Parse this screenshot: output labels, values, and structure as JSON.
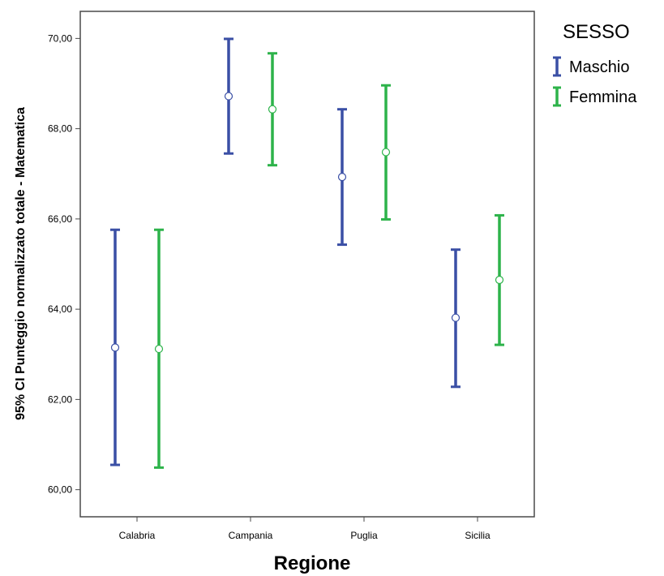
{
  "chart_data": {
    "type": "errorbar",
    "title": "",
    "xlabel": "Regione",
    "ylabel": "95% CI Punteggio normalizzato totale - Matematica",
    "categories": [
      "Calabria",
      "Campania",
      "Puglia",
      "Sicilia"
    ],
    "ylim": [
      59.4,
      70.6
    ],
    "yticks": [
      "60,00",
      "62,00",
      "64,00",
      "66,00",
      "68,00",
      "70,00"
    ],
    "ytick_values": [
      60,
      62,
      64,
      66,
      68,
      70
    ],
    "grid": false,
    "legend": {
      "title": "SESSO",
      "placement": "right"
    },
    "series": [
      {
        "name": "Maschio",
        "color": "#3a4fa5",
        "mean": [
          63.15,
          68.72,
          66.93,
          63.81
        ],
        "lower": [
          60.55,
          67.45,
          65.43,
          62.28
        ],
        "upper": [
          65.76,
          69.99,
          68.43,
          65.32
        ]
      },
      {
        "name": "Femmina",
        "color": "#2db34a",
        "mean": [
          63.12,
          68.43,
          67.48,
          64.65
        ],
        "lower": [
          60.49,
          67.19,
          65.99,
          63.21
        ],
        "upper": [
          65.76,
          69.67,
          68.96,
          66.08
        ]
      }
    ]
  }
}
